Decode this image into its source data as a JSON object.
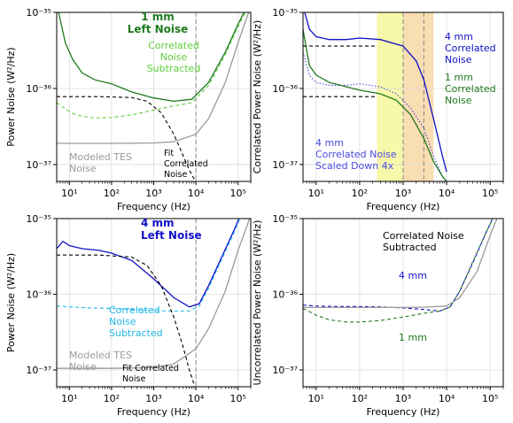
{
  "colors": {
    "green_dark": "#1f7a1f",
    "green_light": "#5fcf3a",
    "blue_dark": "#1010c8",
    "blue_light": "#20b8e8",
    "gray": "#9a9a9a",
    "black": "#000000",
    "yellow_band": "#f6f79a",
    "orange_band": "#f8d7a6"
  },
  "chart_data": [
    {
      "type": "line",
      "panel": "top-left",
      "xlabel": "Frequency (Hz)",
      "ylabel": "Power Noise (W²/Hz)",
      "xscale": "log",
      "yscale": "log",
      "xlim": [
        5,
        200000
      ],
      "ylim": [
        6e-38,
        1e-35
      ],
      "xticks": [
        "10¹",
        "10²",
        "10³",
        "10⁴",
        "10⁵"
      ],
      "yticks": [
        "10⁻³⁷",
        "10⁻³⁶",
        "10⁻³⁵"
      ],
      "vline_hz": 10000,
      "annotations": [
        {
          "text": "1 mm",
          "color": "#1f7a1f"
        },
        {
          "text": "Left Noise",
          "color": "#1f7a1f"
        },
        {
          "text": "Correlated",
          "color": "#5fcf3a"
        },
        {
          "text": "Noise",
          "color": "#5fcf3a"
        },
        {
          "text": "Subtracted",
          "color": "#5fcf3a"
        },
        {
          "text": "Modeled TES",
          "color": "#9a9a9a"
        },
        {
          "text": "Noise",
          "color": "#9a9a9a"
        },
        {
          "text": "Fit",
          "color": "#000000"
        },
        {
          "text": "Correlated",
          "color": "#000000"
        },
        {
          "text": "Noise",
          "color": "#000000"
        }
      ],
      "series": [
        {
          "color": "#1f7a1f",
          "style": "solid",
          "x": [
            5,
            8,
            12,
            20,
            40,
            100,
            300,
            1000,
            3000,
            8000,
            20000,
            50000,
            100000,
            200000
          ],
          "y": [
            1.3e-35,
            4e-36,
            2.4e-36,
            1.6e-36,
            1.3e-36,
            1.15e-36,
            9e-37,
            7.5e-37,
            6.8e-37,
            7.2e-37,
            1.2e-36,
            3e-36,
            7e-36,
            1.5e-35
          ]
        },
        {
          "color": "#5fcf3a",
          "style": "dashed",
          "x": [
            5,
            8,
            12,
            20,
            40,
            100,
            300,
            1000,
            3000,
            8000,
            20000,
            50000,
            100000,
            200000
          ],
          "y": [
            6.5e-37,
            5.4e-37,
            4.7e-37,
            4.3e-37,
            4.1e-37,
            4.15e-37,
            4.5e-37,
            5.2e-37,
            5.9e-37,
            6.5e-37,
            1.1e-36,
            2.8e-36,
            6.5e-36,
            1.4e-35
          ]
        },
        {
          "color": "#9a9a9a",
          "style": "solid",
          "x": [
            5,
            100,
            1000,
            3000,
            10000,
            20000,
            50000,
            100000,
            200000
          ],
          "y": [
            1.9e-37,
            1.9e-37,
            1.92e-37,
            2e-37,
            2.5e-37,
            4e-37,
            1.2e-36,
            4e-36,
            1.2e-35
          ]
        },
        {
          "color": "#000000",
          "style": "dashed",
          "x": [
            5,
            50,
            300,
            700,
            1500,
            3000,
            5000,
            7000,
            9000,
            12000
          ],
          "y": [
            7.8e-37,
            7.8e-37,
            7.6e-37,
            6.8e-37,
            4.8e-37,
            2.5e-37,
            1.3e-37,
            8.5e-38,
            6.5e-38,
            5e-38
          ]
        }
      ]
    },
    {
      "type": "line",
      "panel": "top-right",
      "xlabel": "Frequency (Hz)",
      "ylabel": "Correlated Power Noise (W²/Hz)",
      "xscale": "log",
      "yscale": "log",
      "xlim": [
        5,
        200000
      ],
      "ylim": [
        6e-38,
        1e-35
      ],
      "xticks": [
        "10¹",
        "10²",
        "10³",
        "10⁴",
        "10⁵"
      ],
      "yticks": [
        "10⁻³⁷",
        "10⁻³⁶",
        "10⁻³⁵"
      ],
      "vlines_hz": [
        1000,
        3000
      ],
      "bands_hz": [
        {
          "from": 250,
          "to": 1000,
          "color": "#f6f79a"
        },
        {
          "from": 1000,
          "to": 5000,
          "color": "#f8d7a6"
        }
      ],
      "annotations": [
        {
          "text": "4 mm",
          "color": "#1010c8"
        },
        {
          "text": "Correlated",
          "color": "#1010c8"
        },
        {
          "text": "Noise",
          "color": "#1010c8"
        },
        {
          "text": "1 mm",
          "color": "#1f7a1f"
        },
        {
          "text": "Correlated",
          "color": "#1f7a1f"
        },
        {
          "text": "Noise",
          "color": "#1f7a1f"
        },
        {
          "text": "4 mm",
          "color": "#4a4ae0"
        },
        {
          "text": "Correlated Noise",
          "color": "#4a4ae0"
        },
        {
          "text": "Scaled Down 4x",
          "color": "#4a4ae0"
        }
      ],
      "series": [
        {
          "color": "#1010c8",
          "style": "solid",
          "x": [
            5,
            7,
            10,
            20,
            50,
            100,
            300,
            1000,
            2000,
            3000,
            5000,
            8000,
            10000
          ],
          "y": [
            1.2e-35,
            6e-36,
            4.8e-36,
            4.4e-36,
            4.4e-36,
            4.6e-36,
            4.4e-36,
            3.6e-36,
            2.3e-36,
            1.3e-36,
            4e-37,
            1.3e-37,
            8e-38
          ]
        },
        {
          "color": "#4a4ae0",
          "style": "dotted",
          "x": [
            5,
            7,
            10,
            20,
            50,
            100,
            300,
            700,
            1500,
            3000,
            5000,
            8000
          ],
          "y": [
            3e-36,
            1.5e-36,
            1.2e-36,
            1.1e-36,
            1.1e-36,
            1.15e-36,
            1.05e-36,
            8.5e-37,
            5.5e-37,
            3e-37,
            1.3e-37,
            7e-38
          ]
        },
        {
          "color": "#1f7a1f",
          "style": "solid",
          "x": [
            5,
            7,
            10,
            20,
            50,
            100,
            300,
            700,
            1500,
            3000,
            5000,
            8000,
            10000
          ],
          "y": [
            6e-36,
            2e-36,
            1.5e-36,
            1.2e-36,
            1.05e-36,
            9.5e-37,
            8.5e-37,
            7e-37,
            4.5e-37,
            2.2e-37,
            1.1e-37,
            7e-38,
            6e-38
          ]
        },
        {
          "color": "#000000",
          "style": "dashed",
          "x": [
            5,
            250
          ],
          "y": [
            3.6e-36,
            3.6e-36
          ]
        },
        {
          "color": "#000000",
          "style": "dashed",
          "x": [
            5,
            250
          ],
          "y": [
            7.8e-37,
            7.8e-37
          ]
        }
      ]
    },
    {
      "type": "line",
      "panel": "bottom-left",
      "xlabel": "Frequency (Hz)",
      "ylabel": "Power Noise (W²/Hz)",
      "xscale": "log",
      "yscale": "log",
      "xlim": [
        5,
        200000
      ],
      "ylim": [
        6e-38,
        1e-35
      ],
      "xticks": [
        "10¹",
        "10²",
        "10³",
        "10⁴",
        "10⁵"
      ],
      "yticks": [
        "10⁻³⁷",
        "10⁻³⁶",
        "10⁻³⁵"
      ],
      "vline_hz": 10000,
      "annotations": [
        {
          "text": "4 mm",
          "color": "#1010c8"
        },
        {
          "text": "Left Noise",
          "color": "#1010c8"
        },
        {
          "text": "Correlated",
          "color": "#20b8e8"
        },
        {
          "text": "Noise",
          "color": "#20b8e8"
        },
        {
          "text": "Subtracted",
          "color": "#20b8e8"
        },
        {
          "text": "Modeled TES",
          "color": "#9a9a9a"
        },
        {
          "text": "Noise",
          "color": "#9a9a9a"
        },
        {
          "text": "Fit Correlated",
          "color": "#000000"
        },
        {
          "text": "Noise",
          "color": "#000000"
        }
      ],
      "series": [
        {
          "color": "#1010c8",
          "style": "solid",
          "x": [
            5,
            7,
            10,
            20,
            50,
            100,
            300,
            1000,
            3000,
            7000,
            12000,
            20000,
            40000,
            80000,
            150000
          ],
          "y": [
            4e-36,
            5e-36,
            4.4e-36,
            4e-36,
            3.8e-36,
            3.5e-36,
            2.8e-36,
            1.6e-36,
            9e-37,
            6.8e-37,
            7.5e-37,
            1.3e-36,
            3e-36,
            7e-36,
            1.6e-35
          ]
        },
        {
          "color": "#20b8e8",
          "style": "dashed",
          "x": [
            5,
            10,
            30,
            100,
            300,
            1000,
            3000,
            7000,
            12000,
            20000,
            40000,
            80000,
            150000
          ],
          "y": [
            7e-37,
            6.8e-37,
            6.6e-37,
            6.5e-37,
            6.3e-37,
            6.1e-37,
            6e-37,
            6e-37,
            7e-37,
            1.2e-36,
            2.8e-36,
            6.5e-36,
            1.5e-35
          ]
        },
        {
          "color": "#9a9a9a",
          "style": "solid",
          "x": [
            5,
            100,
            1000,
            3000,
            10000,
            20000,
            50000,
            100000,
            200000
          ],
          "y": [
            1.05e-37,
            1.05e-37,
            1.07e-37,
            1.2e-37,
            1.9e-37,
            3.5e-37,
            1.1e-36,
            3.8e-36,
            1.1e-35
          ]
        },
        {
          "color": "#000000",
          "style": "dashed",
          "x": [
            5,
            50,
            300,
            700,
            1500,
            3000,
            5000,
            7000,
            9000
          ],
          "y": [
            3.3e-36,
            3.3e-36,
            3.1e-36,
            2.4e-36,
            1.3e-36,
            5e-37,
            2e-37,
            1e-37,
            6.5e-38
          ]
        }
      ]
    },
    {
      "type": "line",
      "panel": "bottom-right",
      "xlabel": "Frequency (Hz)",
      "ylabel": "Uncorrelated Power Noise (W²/Hz)",
      "xscale": "log",
      "yscale": "log",
      "xlim": [
        5,
        200000
      ],
      "ylim": [
        6e-38,
        1e-35
      ],
      "xticks": [
        "10¹",
        "10²",
        "10³",
        "10⁴",
        "10⁵"
      ],
      "yticks": [
        "10⁻³⁷",
        "10⁻³⁶",
        "10⁻³⁵"
      ],
      "annotations": [
        {
          "text": "Correlated Noise",
          "color": "#000000"
        },
        {
          "text": "Subtracted",
          "color": "#000000"
        },
        {
          "text": "4 mm",
          "color": "#1010c8"
        },
        {
          "text": "1 mm",
          "color": "#1f7a1f"
        }
      ],
      "series": [
        {
          "color": "#1010c8",
          "style": "dashed",
          "x": [
            5,
            10,
            30,
            100,
            300,
            1000,
            3000,
            7000,
            12000,
            20000,
            40000,
            80000,
            150000
          ],
          "y": [
            7.2e-37,
            7e-37,
            6.9e-37,
            6.9e-37,
            6.8e-37,
            6.6e-37,
            6.3e-37,
            6e-37,
            6.8e-37,
            1.1e-36,
            2.6e-36,
            6.5e-36,
            1.4e-35
          ]
        },
        {
          "color": "#1f7a1f",
          "style": "dashed",
          "x": [
            5,
            10,
            20,
            50,
            100,
            300,
            1000,
            3000,
            7000,
            12000,
            20000,
            40000,
            80000,
            150000
          ],
          "y": [
            6.5e-37,
            5.3e-37,
            4.6e-37,
            4.3e-37,
            4.3e-37,
            4.5e-37,
            5e-37,
            5.6e-37,
            6e-37,
            6.8e-37,
            1.1e-36,
            2.7e-36,
            6.5e-36,
            1.4e-35
          ]
        },
        {
          "color": "#9a9a9a",
          "style": "solid",
          "x": [
            5,
            100,
            1000,
            3000,
            10000,
            20000,
            50000,
            100000,
            200000
          ],
          "y": [
            6.7e-37,
            6.7e-37,
            6.7e-37,
            6.75e-37,
            7e-37,
            9e-37,
            2e-36,
            6e-36,
            1.6e-35
          ]
        }
      ]
    }
  ]
}
